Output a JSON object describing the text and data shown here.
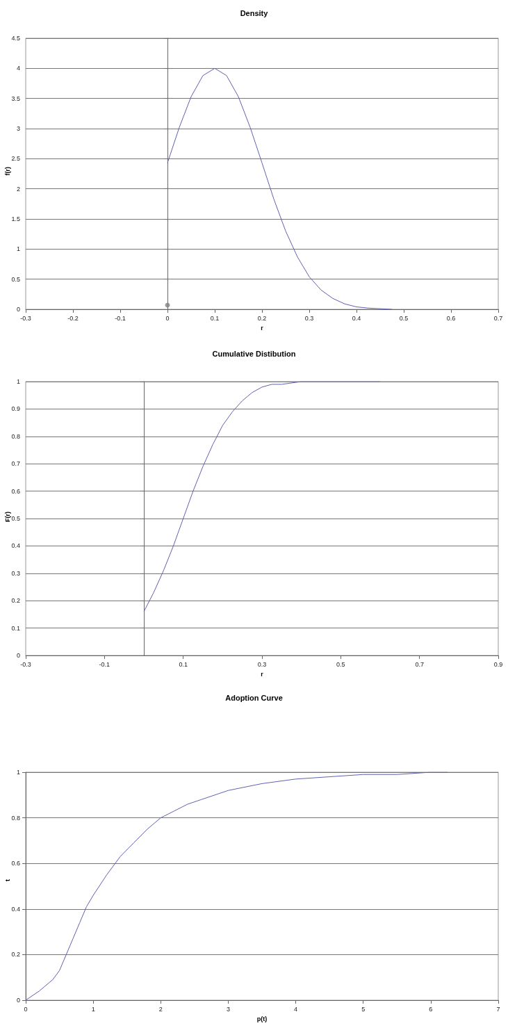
{
  "chart_data": [
    {
      "type": "line",
      "title": "Density",
      "xlabel": "r",
      "ylabel": "f(r)",
      "xlim": [
        -0.3,
        0.7
      ],
      "xticks": [
        -0.3,
        -0.2,
        -0.1,
        0,
        0.1,
        0.2,
        0.3,
        0.4,
        0.5,
        0.6,
        0.7
      ],
      "ylim": [
        0,
        4.5
      ],
      "yticks": [
        0,
        0.5,
        1,
        1.5,
        2,
        2.5,
        3,
        3.5,
        4,
        4.5
      ],
      "grid": "y",
      "marker": "none",
      "series": [
        {
          "color": "#6060b0",
          "x": [
            0,
            0.025,
            0.05,
            0.075,
            0.1,
            0.125,
            0.15,
            0.175,
            0.2,
            0.225,
            0.25,
            0.275,
            0.3,
            0.325,
            0.35,
            0.375,
            0.4,
            0.425,
            0.45,
            0.475
          ],
          "values": [
            2.43,
            3.02,
            3.53,
            3.88,
            4,
            3.88,
            3.53,
            3.02,
            2.43,
            1.83,
            1.3,
            0.87,
            0.54,
            0.32,
            0.18,
            0.09,
            0.04,
            0.02,
            0.01,
            0
          ]
        },
        {
          "type": "scatter",
          "color": "#808080",
          "x": [
            0
          ],
          "values": [
            0.07
          ]
        }
      ]
    },
    {
      "type": "line",
      "title": "Cumulative Distibution",
      "xlabel": "r",
      "ylabel": "F(r)",
      "xlim": [
        -0.3,
        0.9
      ],
      "xticks": [
        -0.3,
        -0.1,
        0.1,
        0.3,
        0.5,
        0.7,
        0.9
      ],
      "ylim": [
        0,
        1
      ],
      "yticks": [
        0,
        0.1,
        0.2,
        0.3,
        0.4,
        0.5,
        0.6,
        0.7,
        0.8,
        0.9,
        1
      ],
      "grid": "y",
      "marker": "none",
      "series": [
        {
          "color": "#6060b0",
          "x": [
            0,
            0.025,
            0.05,
            0.075,
            0.1,
            0.125,
            0.15,
            0.175,
            0.2,
            0.225,
            0.25,
            0.275,
            0.3,
            0.325,
            0.35,
            0.4,
            0.45,
            0.5,
            0.55,
            0.6
          ],
          "values": [
            0.16,
            0.23,
            0.31,
            0.4,
            0.5,
            0.6,
            0.69,
            0.77,
            0.84,
            0.89,
            0.93,
            0.96,
            0.98,
            0.99,
            0.99,
            1,
            1,
            1,
            1,
            1
          ]
        }
      ]
    },
    {
      "type": "line",
      "title": "Adoption Curve",
      "xlabel": "p(t)",
      "ylabel": "t",
      "xlim": [
        0,
        7
      ],
      "xticks": [
        0,
        1,
        2,
        3,
        4,
        5,
        6,
        7
      ],
      "ylim": [
        0,
        1
      ],
      "yticks": [
        0,
        0.2,
        0.4,
        0.6,
        0.8,
        1
      ],
      "grid": "y",
      "marker": "none",
      "series": [
        {
          "color": "#6060b0",
          "x": [
            0,
            0.2,
            0.4,
            0.5,
            0.6,
            0.7,
            0.8,
            0.9,
            1,
            1.2,
            1.4,
            1.6,
            1.8,
            2,
            2.2,
            2.4,
            2.6,
            2.8,
            3,
            3.5,
            4,
            4.5,
            5,
            5.5,
            6,
            6.25
          ],
          "values": [
            0,
            0.04,
            0.09,
            0.13,
            0.2,
            0.27,
            0.34,
            0.41,
            0.46,
            0.55,
            0.63,
            0.69,
            0.75,
            0.8,
            0.83,
            0.86,
            0.88,
            0.9,
            0.92,
            0.95,
            0.97,
            0.98,
            0.99,
            0.99,
            1,
            1
          ]
        }
      ]
    }
  ]
}
